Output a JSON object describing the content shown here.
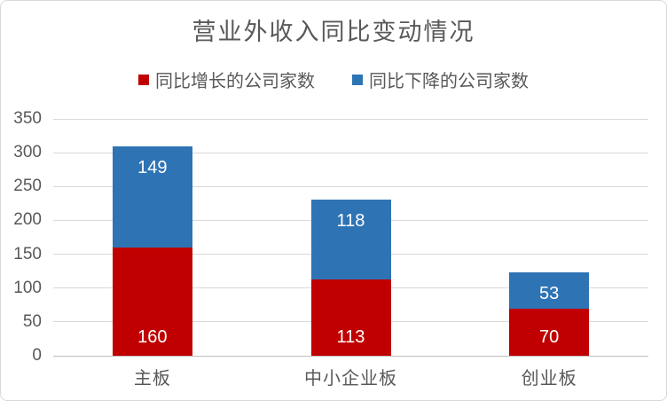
{
  "header": {
    "title": "营业外收入同比变动情况"
  },
  "legend": {
    "items": [
      {
        "label": "同比增长的公司家数",
        "color": "#C00000"
      },
      {
        "label": "同比下降的公司家数",
        "color": "#2E74B5"
      }
    ]
  },
  "chart_data": {
    "type": "bar",
    "stacked": true,
    "title": "营业外收入同比变动情况",
    "categories": [
      "主板",
      "中小企业板",
      "创业板"
    ],
    "series": [
      {
        "name": "同比增长的公司家数",
        "color": "#C00000",
        "values": [
          160,
          113,
          70
        ],
        "data_label_color": "#FFFFFF",
        "label_anchor": "inside-base"
      },
      {
        "name": "同比下降的公司家数",
        "color": "#2E74B5",
        "values": [
          149,
          118,
          53
        ],
        "data_label_color": "#FFFFFF",
        "label_anchor": "inside-end"
      }
    ],
    "totals": [
      309,
      231,
      123
    ],
    "xlabel": "",
    "ylabel": "",
    "ylim": [
      0,
      350
    ],
    "yticks": [
      0,
      50,
      100,
      150,
      200,
      250,
      300,
      350
    ],
    "grid": true,
    "legend_position": "top"
  },
  "styles": {
    "background": "#FFFFFF",
    "border_color": "#D9D9D9",
    "grid_color": "#D9D9D9",
    "axis_line_color": "#BFBFBF",
    "title_color": "#595959",
    "tick_label_color": "#595959",
    "category_label_color": "#595959"
  }
}
